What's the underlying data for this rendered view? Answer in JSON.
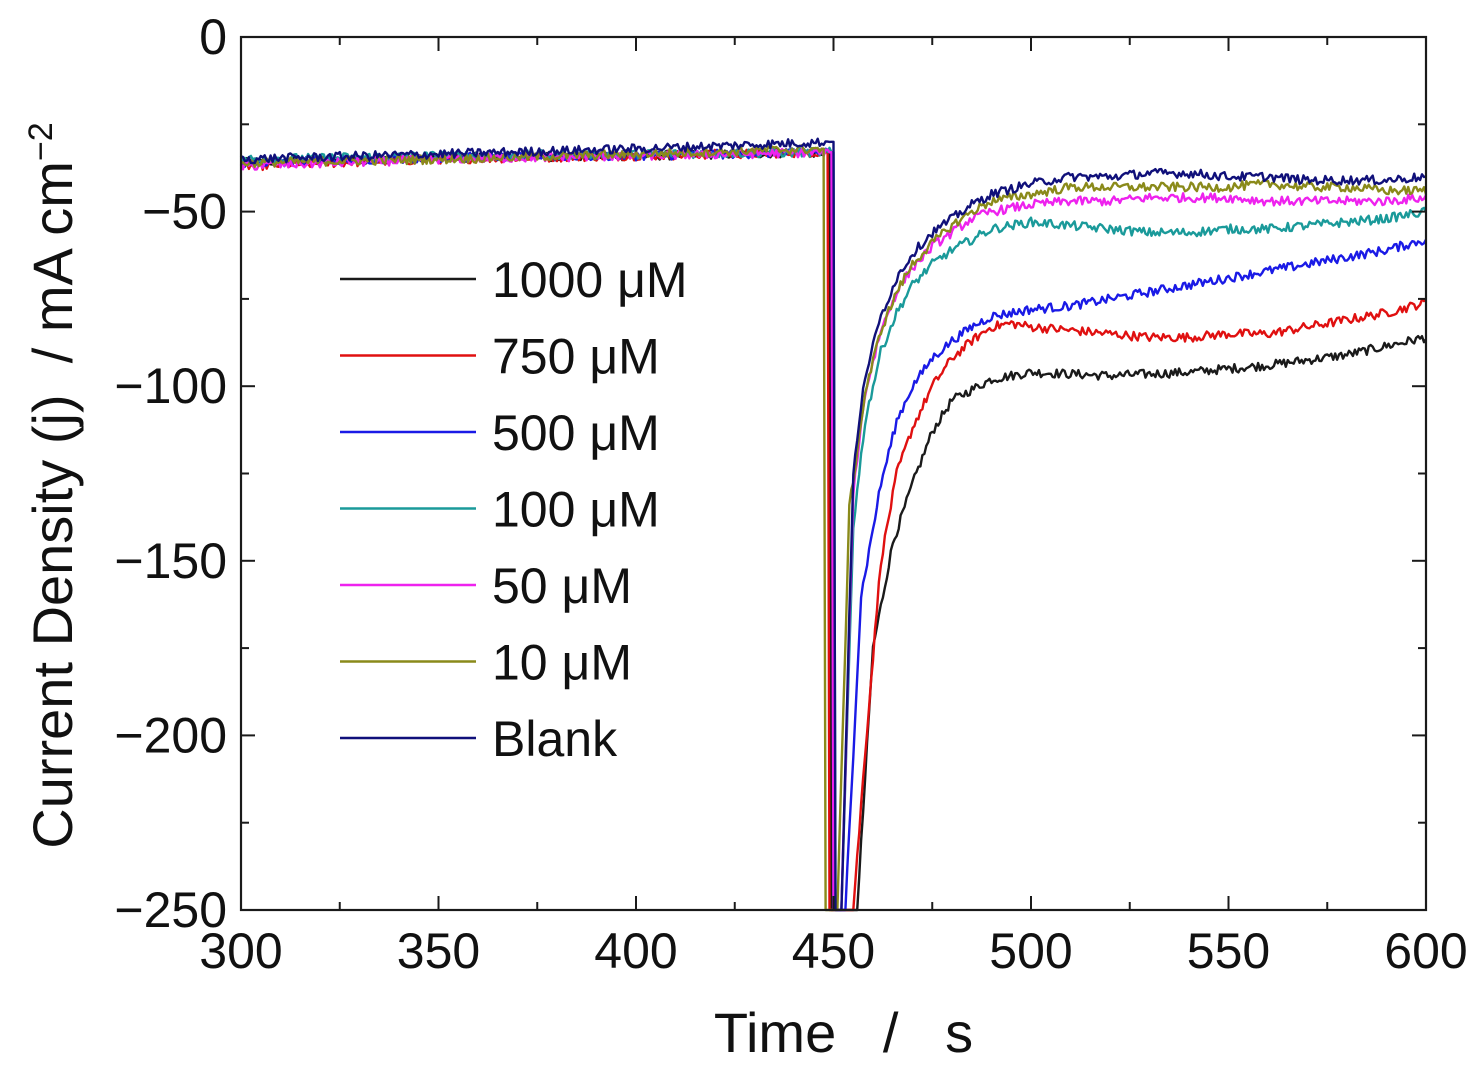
{
  "chart_data": {
    "type": "line",
    "title": "",
    "xlabel": "Time   /   s",
    "ylabel": "Current Density (j)  / mA cm",
    "ylabel_superscript": "−2",
    "xlim": [
      300,
      600
    ],
    "ylim": [
      -250,
      0
    ],
    "x_ticks": [
      300,
      350,
      400,
      450,
      500,
      550,
      600
    ],
    "x_tick_labels": [
      "300",
      "350",
      "400",
      "450",
      "500",
      "550",
      "600"
    ],
    "y_ticks": [
      0,
      -50,
      -100,
      -150,
      -200,
      -250
    ],
    "y_tick_labels": [
      "0",
      "−50",
      "−100",
      "−150",
      "−200",
      "−250"
    ],
    "grid": false,
    "legend_position": "left-center",
    "series": [
      {
        "name": "1000 μM",
        "color": "#1a1a1a",
        "step_time": 449.5,
        "points": [
          [
            300,
            -36
          ],
          [
            350,
            -34.5
          ],
          [
            400,
            -34
          ],
          [
            449,
            -33
          ],
          [
            449.5,
            -250
          ],
          [
            456,
            -250
          ],
          [
            460,
            -175
          ],
          [
            465,
            -145
          ],
          [
            470,
            -128
          ],
          [
            475,
            -113
          ],
          [
            480,
            -104
          ],
          [
            490,
            -98
          ],
          [
            500,
            -96
          ],
          [
            520,
            -97
          ],
          [
            540,
            -96
          ],
          [
            560,
            -94
          ],
          [
            580,
            -91
          ],
          [
            600,
            -86
          ]
        ]
      },
      {
        "name": "750 μM",
        "color": "#e01010",
        "step_time": 449,
        "points": [
          [
            300,
            -37
          ],
          [
            350,
            -35
          ],
          [
            400,
            -34
          ],
          [
            448.5,
            -33
          ],
          [
            449,
            -250
          ],
          [
            455,
            -250
          ],
          [
            458,
            -205
          ],
          [
            462,
            -150
          ],
          [
            466,
            -125
          ],
          [
            470,
            -112
          ],
          [
            475,
            -100
          ],
          [
            480,
            -92
          ],
          [
            485,
            -87
          ],
          [
            490,
            -83
          ],
          [
            495,
            -82
          ],
          [
            500,
            -83
          ],
          [
            510,
            -84
          ],
          [
            520,
            -85
          ],
          [
            530,
            -86
          ],
          [
            540,
            -86
          ],
          [
            550,
            -85
          ],
          [
            560,
            -85
          ],
          [
            570,
            -83
          ],
          [
            580,
            -81
          ],
          [
            590,
            -79
          ],
          [
            600,
            -76
          ]
        ]
      },
      {
        "name": "500 μM",
        "color": "#1a1ae6",
        "step_time": 450,
        "points": [
          [
            300,
            -36
          ],
          [
            350,
            -34.5
          ],
          [
            400,
            -34
          ],
          [
            449.5,
            -33
          ],
          [
            450,
            -250
          ],
          [
            453,
            -250
          ],
          [
            457,
            -160
          ],
          [
            462,
            -128
          ],
          [
            466,
            -110
          ],
          [
            470,
            -100
          ],
          [
            475,
            -92
          ],
          [
            480,
            -87
          ],
          [
            485,
            -83
          ],
          [
            490,
            -80
          ],
          [
            500,
            -78
          ],
          [
            510,
            -77
          ],
          [
            520,
            -75
          ],
          [
            530,
            -73
          ],
          [
            540,
            -71
          ],
          [
            550,
            -69
          ],
          [
            560,
            -67
          ],
          [
            570,
            -65
          ],
          [
            580,
            -63
          ],
          [
            590,
            -61
          ],
          [
            600,
            -58
          ]
        ]
      },
      {
        "name": "100 μM",
        "color": "#1a9a9a",
        "step_time": 450.5,
        "points": [
          [
            300,
            -35
          ],
          [
            350,
            -34
          ],
          [
            400,
            -33.5
          ],
          [
            450,
            -33
          ],
          [
            450.5,
            -250
          ],
          [
            452,
            -250
          ],
          [
            455,
            -140
          ],
          [
            458,
            -110
          ],
          [
            462,
            -90
          ],
          [
            466,
            -79
          ],
          [
            470,
            -71
          ],
          [
            475,
            -65
          ],
          [
            480,
            -61
          ],
          [
            485,
            -58
          ],
          [
            490,
            -55
          ],
          [
            500,
            -53
          ],
          [
            510,
            -54
          ],
          [
            520,
            -55
          ],
          [
            530,
            -56
          ],
          [
            540,
            -56
          ],
          [
            550,
            -55
          ],
          [
            560,
            -55
          ],
          [
            570,
            -54
          ],
          [
            580,
            -53
          ],
          [
            590,
            -52
          ],
          [
            600,
            -50
          ]
        ]
      },
      {
        "name": "50 μM",
        "color": "#ee22ee",
        "step_time": 450,
        "points": [
          [
            300,
            -37
          ],
          [
            350,
            -35
          ],
          [
            400,
            -34
          ],
          [
            449.5,
            -33
          ],
          [
            450,
            -250
          ],
          [
            452,
            -250
          ],
          [
            455,
            -130
          ],
          [
            458,
            -102
          ],
          [
            462,
            -84
          ],
          [
            466,
            -73
          ],
          [
            470,
            -66
          ],
          [
            475,
            -60
          ],
          [
            480,
            -56
          ],
          [
            485,
            -52
          ],
          [
            490,
            -50
          ],
          [
            500,
            -48
          ],
          [
            510,
            -47
          ],
          [
            520,
            -47
          ],
          [
            530,
            -46
          ],
          [
            540,
            -46
          ],
          [
            550,
            -46
          ],
          [
            560,
            -47
          ],
          [
            570,
            -47
          ],
          [
            580,
            -47
          ],
          [
            590,
            -47
          ],
          [
            600,
            -46
          ]
        ]
      },
      {
        "name": "10 μM",
        "color": "#8a8a1a",
        "step_time": 448,
        "points": [
          [
            300,
            -36
          ],
          [
            350,
            -35
          ],
          [
            400,
            -33.5
          ],
          [
            447.5,
            -32
          ],
          [
            448,
            -250
          ],
          [
            451,
            -250
          ],
          [
            454,
            -135
          ],
          [
            458,
            -102
          ],
          [
            462,
            -84
          ],
          [
            466,
            -73
          ],
          [
            470,
            -65
          ],
          [
            475,
            -59
          ],
          [
            480,
            -54
          ],
          [
            485,
            -50
          ],
          [
            490,
            -47
          ],
          [
            500,
            -45
          ],
          [
            510,
            -43
          ],
          [
            520,
            -43
          ],
          [
            530,
            -43
          ],
          [
            540,
            -43
          ],
          [
            550,
            -43
          ],
          [
            560,
            -42
          ],
          [
            570,
            -43
          ],
          [
            580,
            -43
          ],
          [
            590,
            -44
          ],
          [
            600,
            -44
          ]
        ]
      },
      {
        "name": "Blank",
        "color": "#10107a",
        "step_time": 450.5,
        "points": [
          [
            300,
            -35
          ],
          [
            350,
            -33.5
          ],
          [
            400,
            -32
          ],
          [
            450,
            -30
          ],
          [
            450.5,
            -250
          ],
          [
            452,
            -250
          ],
          [
            455,
            -125
          ],
          [
            458,
            -97
          ],
          [
            462,
            -80
          ],
          [
            466,
            -69
          ],
          [
            470,
            -62
          ],
          [
            475,
            -56
          ],
          [
            480,
            -52
          ],
          [
            485,
            -48
          ],
          [
            490,
            -45
          ],
          [
            500,
            -42
          ],
          [
            510,
            -40
          ],
          [
            520,
            -40
          ],
          [
            530,
            -39
          ],
          [
            540,
            -39
          ],
          [
            550,
            -40
          ],
          [
            560,
            -40
          ],
          [
            570,
            -41
          ],
          [
            580,
            -41
          ],
          [
            590,
            -41
          ],
          [
            600,
            -40
          ]
        ]
      }
    ]
  }
}
